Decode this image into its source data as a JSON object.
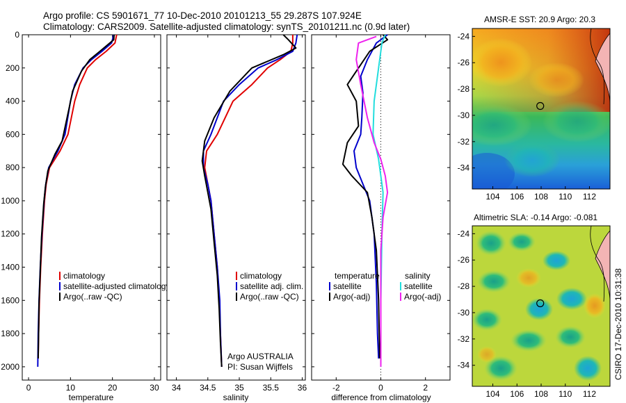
{
  "figure": {
    "title_line1": "Argo profile: CS 5901671_77 10-Dec-2010 20101213_55 29.287S 107.924E",
    "title_line2": "Climatology: CARS2009. Satellite-adjusted climatology: synTS_20101211.nc (0.9d later)",
    "side_label": "CSIRO 17-Dec-2010 10:31:38"
  },
  "colors": {
    "climatology": "#e00000",
    "satellite": "#0000cc",
    "argo": "#000000",
    "salinity_sat": "#22dddd",
    "salinity_argo": "#ee22ee"
  },
  "chart_data": [
    {
      "id": "temperature",
      "type": "line",
      "xlabel": "temperature",
      "xlim": [
        -1.5,
        31.5
      ],
      "xticks": [
        0,
        10,
        20,
        30
      ],
      "ylim": [
        0,
        2080
      ],
      "yticks": [
        0,
        200,
        400,
        600,
        800,
        1000,
        1200,
        1400,
        1600,
        1800,
        2000
      ],
      "yreversed": true,
      "legend": [
        "climatology",
        "satellite-adjusted climatology",
        "Argo(..raw -QC)"
      ],
      "series": [
        {
          "name": "climatology",
          "color": "#e00000",
          "points": [
            [
              21.0,
              0
            ],
            [
              20.6,
              50
            ],
            [
              18.5,
              100
            ],
            [
              16.0,
              150
            ],
            [
              14.0,
              200
            ],
            [
              12.2,
              300
            ],
            [
              11.0,
              400
            ],
            [
              9.4,
              600
            ],
            [
              7.5,
              700
            ],
            [
              5.0,
              800
            ],
            [
              4.2,
              900
            ],
            [
              3.8,
              1000
            ],
            [
              3.3,
              1200
            ],
            [
              2.9,
              1400
            ],
            [
              2.6,
              1600
            ],
            [
              2.4,
              1800
            ],
            [
              2.3,
              1950
            ]
          ]
        },
        {
          "name": "satellite-adjusted climatology",
          "color": "#0000cc",
          "points": [
            [
              20.3,
              0
            ],
            [
              19.8,
              50
            ],
            [
              17.5,
              100
            ],
            [
              15.0,
              150
            ],
            [
              13.0,
              200
            ],
            [
              11.0,
              300
            ],
            [
              10.0,
              400
            ],
            [
              8.7,
              600
            ],
            [
              7.0,
              700
            ],
            [
              4.8,
              800
            ],
            [
              4.1,
              900
            ],
            [
              3.7,
              1000
            ],
            [
              3.2,
              1200
            ],
            [
              2.8,
              1400
            ],
            [
              2.5,
              1600
            ],
            [
              2.3,
              1800
            ],
            [
              2.2,
              2000
            ]
          ]
        },
        {
          "name": "Argo(..raw -QC)",
          "color": "#000000",
          "points": [
            [
              20.4,
              0
            ],
            [
              20.3,
              30
            ],
            [
              17.0,
              100
            ],
            [
              14.6,
              150
            ],
            [
              12.6,
              220
            ],
            [
              10.5,
              340
            ],
            [
              9.7,
              440
            ],
            [
              8.0,
              640
            ],
            [
              6.3,
              720
            ],
            [
              4.6,
              820
            ],
            [
              4.0,
              920
            ],
            [
              3.6,
              1020
            ],
            [
              3.1,
              1220
            ],
            [
              2.8,
              1420
            ],
            [
              2.5,
              1620
            ],
            [
              2.4,
              1800
            ],
            [
              2.3,
              1950
            ]
          ]
        }
      ]
    },
    {
      "id": "salinity",
      "type": "line",
      "xlabel": "salinity",
      "xlim": [
        33.85,
        36.05
      ],
      "xticks": [
        34,
        34.5,
        35,
        35.5,
        36
      ],
      "xticklabels": [
        "34",
        "34.5",
        "35",
        "35.5",
        "36"
      ],
      "ylim": [
        0,
        2080
      ],
      "yreversed": true,
      "legend": [
        "climatology",
        "satellite adj. clim.",
        "Argo(..raw -QC)"
      ],
      "annotations": [
        "Argo AUSTRALIA",
        "PI: Susan Wijffels"
      ],
      "series": [
        {
          "name": "climatology",
          "color": "#e00000",
          "points": [
            [
              35.85,
              0
            ],
            [
              35.85,
              50
            ],
            [
              35.82,
              100
            ],
            [
              35.65,
              150
            ],
            [
              35.45,
              200
            ],
            [
              35.2,
              300
            ],
            [
              34.9,
              400
            ],
            [
              34.65,
              600
            ],
            [
              34.48,
              700
            ],
            [
              34.45,
              800
            ],
            [
              34.5,
              900
            ],
            [
              34.55,
              1000
            ],
            [
              34.6,
              1200
            ],
            [
              34.65,
              1400
            ],
            [
              34.68,
              1600
            ],
            [
              34.7,
              1800
            ],
            [
              34.72,
              2000
            ]
          ]
        },
        {
          "name": "satellite adj. clim.",
          "color": "#0000cc",
          "points": [
            [
              35.92,
              0
            ],
            [
              35.9,
              50
            ],
            [
              35.85,
              100
            ],
            [
              35.6,
              150
            ],
            [
              35.3,
              200
            ],
            [
              35.0,
              300
            ],
            [
              34.75,
              400
            ],
            [
              34.55,
              600
            ],
            [
              34.43,
              700
            ],
            [
              34.43,
              800
            ],
            [
              34.5,
              900
            ],
            [
              34.55,
              1000
            ],
            [
              34.6,
              1200
            ],
            [
              34.65,
              1400
            ],
            [
              34.69,
              1600
            ],
            [
              34.7,
              1800
            ],
            [
              34.72,
              2000
            ]
          ]
        },
        {
          "name": "Argo(..raw -QC)",
          "color": "#000000",
          "points": [
            [
              35.7,
              0
            ],
            [
              35.78,
              30
            ],
            [
              35.9,
              80
            ],
            [
              35.7,
              120
            ],
            [
              35.2,
              200
            ],
            [
              34.85,
              340
            ],
            [
              34.6,
              500
            ],
            [
              34.45,
              640
            ],
            [
              34.41,
              760
            ],
            [
              34.45,
              850
            ],
            [
              34.5,
              950
            ],
            [
              34.55,
              1050
            ],
            [
              34.6,
              1250
            ],
            [
              34.65,
              1450
            ],
            [
              34.68,
              1650
            ],
            [
              34.7,
              1850
            ],
            [
              34.72,
              2000
            ]
          ]
        }
      ]
    },
    {
      "id": "difference",
      "type": "line",
      "xlabel": "difference from climatology",
      "xlim": [
        -3.1,
        3.1
      ],
      "xticks": [
        -2,
        0,
        2
      ],
      "ylim": [
        0,
        2080
      ],
      "yreversed": true,
      "legend_left_title": "temperature",
      "legend_right_title": "salinity",
      "legend_left": [
        "satellite",
        "Argo(-adj)"
      ],
      "legend_right": [
        "satellite",
        "Argo(-adj)"
      ],
      "series": [
        {
          "name": "temperature satellite",
          "color": "#0000cc",
          "points": [
            [
              0.3,
              0
            ],
            [
              -0.2,
              50
            ],
            [
              -0.6,
              150
            ],
            [
              -0.9,
              250
            ],
            [
              -0.8,
              350
            ],
            [
              -0.85,
              500
            ],
            [
              -0.9,
              600
            ],
            [
              -1.2,
              700
            ],
            [
              -1.1,
              800
            ],
            [
              -0.8,
              900
            ],
            [
              -0.5,
              1000
            ],
            [
              -0.3,
              1200
            ],
            [
              -0.2,
              1500
            ],
            [
              -0.15,
              1800
            ],
            [
              -0.1,
              1950
            ]
          ]
        },
        {
          "name": "temperature Argo(-adj)",
          "color": "#000000",
          "points": [
            [
              0.1,
              0
            ],
            [
              0.3,
              30
            ],
            [
              -0.5,
              100
            ],
            [
              -1.0,
              200
            ],
            [
              -1.5,
              300
            ],
            [
              -1.1,
              400
            ],
            [
              -1.0,
              550
            ],
            [
              -1.5,
              650
            ],
            [
              -1.7,
              780
            ],
            [
              -1.3,
              850
            ],
            [
              -0.6,
              950
            ],
            [
              -0.4,
              1100
            ],
            [
              -0.2,
              1300
            ],
            [
              -0.1,
              1600
            ],
            [
              -0.05,
              1950
            ]
          ]
        },
        {
          "name": "salinity satellite",
          "color": "#22dddd",
          "points": [
            [
              0.2,
              0
            ],
            [
              0.05,
              50
            ],
            [
              -0.1,
              200
            ],
            [
              -0.3,
              400
            ],
            [
              -0.35,
              600
            ],
            [
              -0.1,
              750
            ],
            [
              0.0,
              850
            ],
            [
              0.1,
              950
            ],
            [
              0.05,
              1200
            ],
            [
              0.0,
              1600
            ],
            [
              0.0,
              2000
            ]
          ]
        },
        {
          "name": "salinity Argo(-adj)",
          "color": "#ee22ee",
          "points": [
            [
              -0.2,
              10
            ],
            [
              -1.0,
              50
            ],
            [
              -1.1,
              150
            ],
            [
              -0.9,
              300
            ],
            [
              -0.6,
              500
            ],
            [
              -0.3,
              650
            ],
            [
              0.0,
              750
            ],
            [
              0.2,
              850
            ],
            [
              0.3,
              950
            ],
            [
              0.1,
              1100
            ],
            [
              0.0,
              1300
            ],
            [
              0.0,
              1600
            ],
            [
              0.0,
              2000
            ]
          ]
        }
      ]
    },
    {
      "id": "sst_map",
      "type": "heatmap",
      "title": "AMSR-E SST: 20.9 Argo: 20.3",
      "xlim": [
        102.3,
        113.7
      ],
      "ylim": [
        -35.6,
        -23.4
      ],
      "xticks": [
        104,
        106,
        108,
        110,
        112
      ],
      "yticks": [
        -24,
        -26,
        -28,
        -30,
        -32,
        -34
      ],
      "marker": [
        107.924,
        -29.287
      ]
    },
    {
      "id": "sla_map",
      "type": "heatmap",
      "title": "Altimetric SLA: -0.14 Argo: -0.081",
      "xlim": [
        102.3,
        113.7
      ],
      "ylim": [
        -35.6,
        -23.4
      ],
      "xticks": [
        104,
        106,
        108,
        110,
        112
      ],
      "yticks": [
        -24,
        -26,
        -28,
        -30,
        -32,
        -34
      ],
      "marker": [
        107.924,
        -29.287
      ]
    }
  ]
}
